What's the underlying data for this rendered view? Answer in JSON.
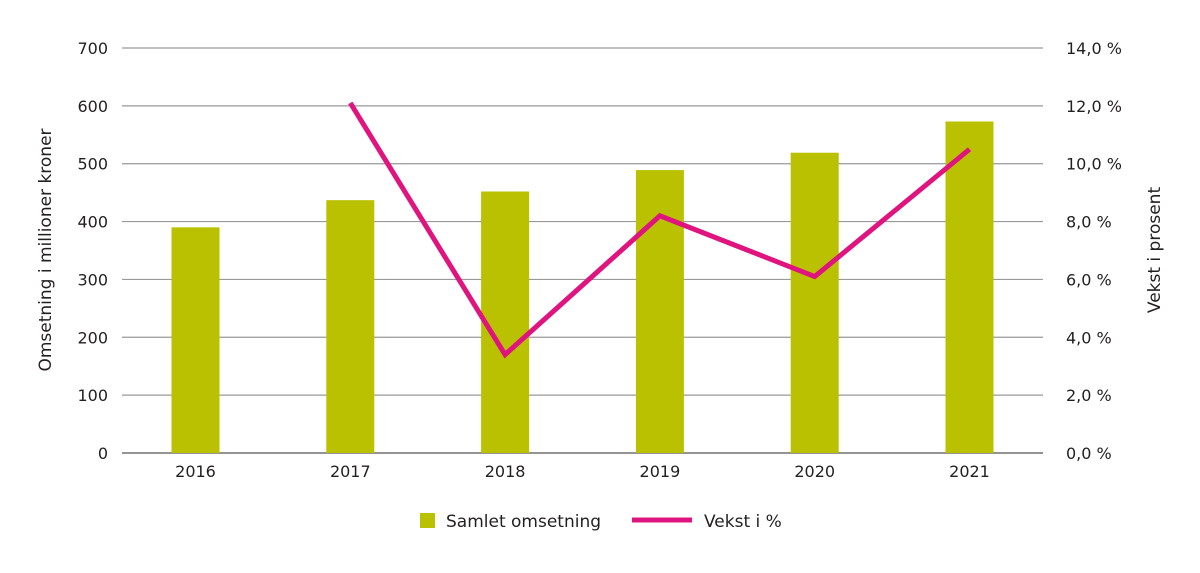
{
  "chart_data": {
    "type": "bar+line",
    "title": "",
    "categories": [
      "2016",
      "2017",
      "2018",
      "2019",
      "2020",
      "2021"
    ],
    "series": [
      {
        "name": "Samlet omsetning",
        "type": "bar",
        "axis": "left",
        "color": "#b9c100",
        "values": [
          390,
          437,
          452,
          489,
          519,
          573
        ]
      },
      {
        "name": "Vekst i %",
        "type": "line",
        "axis": "right",
        "color": "#e0147f",
        "values": [
          null,
          12.1,
          3.4,
          8.2,
          6.1,
          10.5
        ]
      }
    ],
    "ylabel": "Omsetning i millioner kroner",
    "y2label": "Vekst i prosent",
    "ylim": [
      0,
      700
    ],
    "y2lim": [
      0,
      14
    ],
    "yticks": [
      "0",
      "100",
      "200",
      "300",
      "400",
      "500",
      "600",
      "700"
    ],
    "y2ticks": [
      "0,0 %",
      "2,0 %",
      "4,0 %",
      "6,0 %",
      "8,0 %",
      "10,0 %",
      "12,0 %",
      "14,0 %"
    ],
    "grid": true,
    "legend": "bottom-center"
  }
}
